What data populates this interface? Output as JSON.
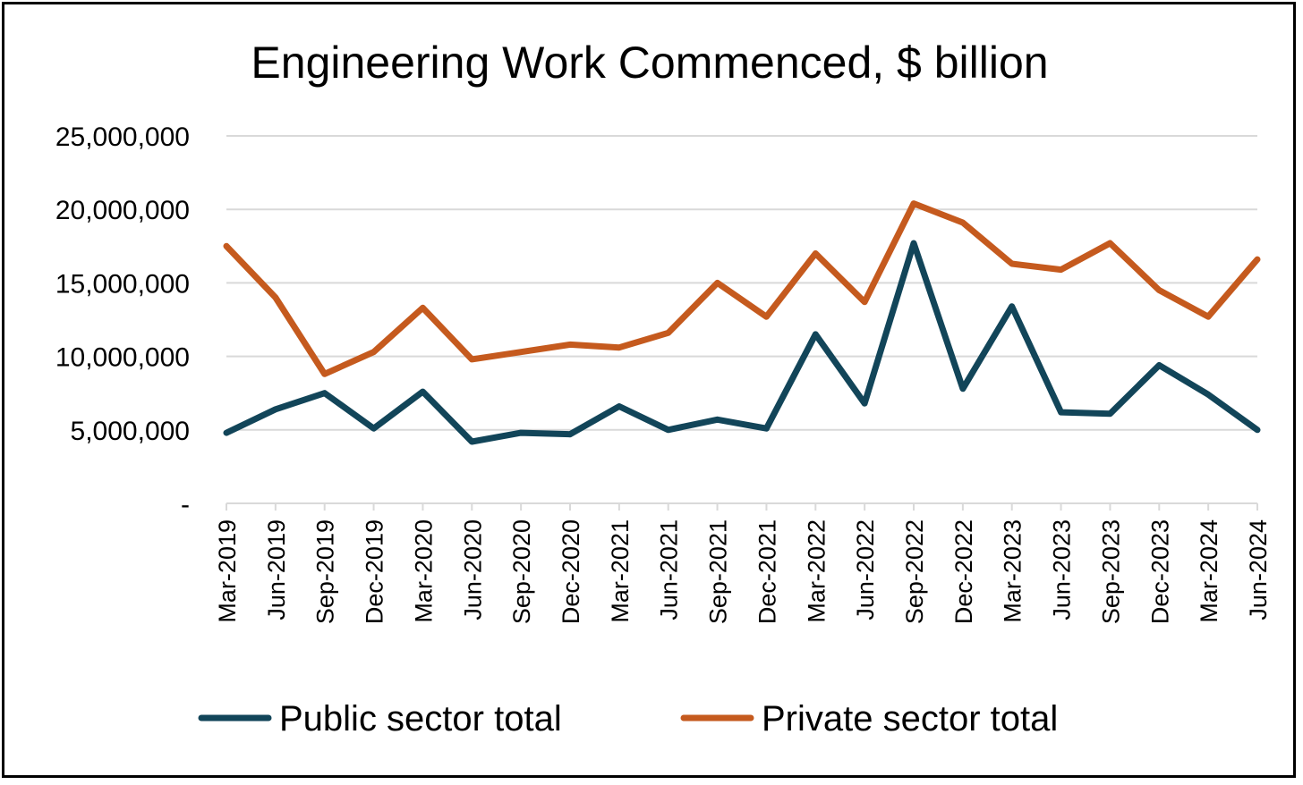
{
  "chart_data": {
    "type": "line",
    "title": "Engineering Work Commenced, $ billion",
    "xlabel": "",
    "ylabel": "",
    "ylim": [
      0,
      25000000
    ],
    "yticks": [
      0,
      5000000,
      10000000,
      15000000,
      20000000,
      25000000
    ],
    "ytick_labels": [
      "-",
      "5,000,000",
      "10,000,000",
      "15,000,000",
      "20,000,000",
      "25,000,000"
    ],
    "grid": true,
    "legend_position": "bottom",
    "categories": [
      "Mar-2019",
      "Jun-2019",
      "Sep-2019",
      "Dec-2019",
      "Mar-2020",
      "Jun-2020",
      "Sep-2020",
      "Dec-2020",
      "Mar-2021",
      "Jun-2021",
      "Sep-2021",
      "Dec-2021",
      "Mar-2022",
      "Jun-2022",
      "Sep-2022",
      "Dec-2022",
      "Mar-2023",
      "Jun-2023",
      "Sep-2023",
      "Dec-2023",
      "Mar-2024",
      "Jun-2024"
    ],
    "series": [
      {
        "name": "Public sector total",
        "color": "#124559",
        "values": [
          4800000,
          6400000,
          7500000,
          5100000,
          7600000,
          4200000,
          4800000,
          4700000,
          6600000,
          5000000,
          5700000,
          5100000,
          11500000,
          6800000,
          17700000,
          7800000,
          13400000,
          6200000,
          6100000,
          9400000,
          7400000,
          5000000
        ]
      },
      {
        "name": "Private sector total",
        "color": "#C55A1E",
        "values": [
          17500000,
          14000000,
          8800000,
          10300000,
          13300000,
          9800000,
          10300000,
          10800000,
          10600000,
          11600000,
          15000000,
          12700000,
          17000000,
          13700000,
          20400000,
          19100000,
          16300000,
          15900000,
          17700000,
          14500000,
          12700000,
          16600000
        ]
      }
    ]
  }
}
